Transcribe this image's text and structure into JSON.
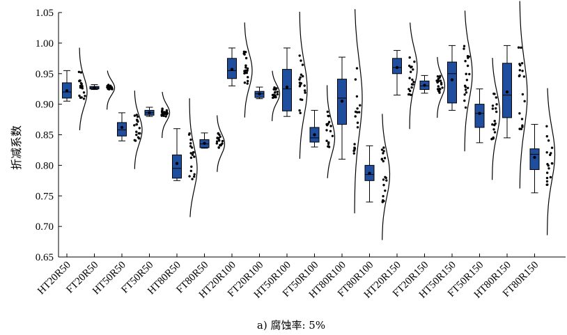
{
  "caption": "a) 腐蚀率: 5%",
  "chart_data": {
    "type": "box-raincloud",
    "ylabel": "折减系数",
    "xlabel": "",
    "ylim": [
      0.65,
      1.05
    ],
    "yticks": [
      "0.65",
      "0.70",
      "0.75",
      "0.80",
      "0.85",
      "0.90",
      "0.95",
      "1.00",
      "1.05"
    ],
    "colors": {
      "box": "#1f4e9e",
      "outline": "#000000"
    },
    "categories": [
      "HT20R50",
      "FT20R50",
      "HT50R50",
      "FT50R50",
      "HT80R50",
      "FT80R50",
      "HT20R100",
      "FT20R100",
      "HT50R100",
      "FT50R100",
      "HT80R100",
      "FT80R100",
      "HT20R150",
      "FT20R150",
      "HT50R150",
      "FT50R150",
      "HT80R150",
      "FT80R150"
    ],
    "series": [
      {
        "category": "HT20R50",
        "whisker_low": 0.905,
        "q1": 0.91,
        "median": 0.92,
        "q3": 0.935,
        "whisker_high": 0.955,
        "mean": 0.922
      },
      {
        "category": "FT20R50",
        "whisker_low": 0.924,
        "q1": 0.925,
        "median": 0.927,
        "q3": 0.929,
        "whisker_high": 0.932,
        "mean": 0.927
      },
      {
        "category": "HT50R50",
        "whisker_low": 0.84,
        "q1": 0.848,
        "median": 0.858,
        "q3": 0.87,
        "whisker_high": 0.886,
        "mean": 0.862
      },
      {
        "category": "FT50R50",
        "whisker_low": 0.88,
        "q1": 0.882,
        "median": 0.886,
        "q3": 0.89,
        "whisker_high": 0.895,
        "mean": 0.886
      },
      {
        "category": "HT80R50",
        "whisker_low": 0.775,
        "q1": 0.779,
        "median": 0.795,
        "q3": 0.817,
        "whisker_high": 0.86,
        "mean": 0.803
      },
      {
        "category": "FT80R50",
        "whisker_low": 0.828,
        "q1": 0.829,
        "median": 0.835,
        "q3": 0.842,
        "whisker_high": 0.853,
        "mean": 0.836
      },
      {
        "category": "HT20R100",
        "whisker_low": 0.93,
        "q1": 0.942,
        "median": 0.955,
        "q3": 0.975,
        "whisker_high": 0.992,
        "mean": 0.957
      },
      {
        "category": "FT20R100",
        "whisker_low": 0.909,
        "q1": 0.911,
        "median": 0.917,
        "q3": 0.921,
        "whisker_high": 0.928,
        "mean": 0.917
      },
      {
        "category": "HT50R100",
        "whisker_low": 0.88,
        "q1": 0.889,
        "median": 0.925,
        "q3": 0.957,
        "whisker_high": 0.992,
        "mean": 0.928
      },
      {
        "category": "FT50R100",
        "whisker_low": 0.83,
        "q1": 0.838,
        "median": 0.845,
        "q3": 0.862,
        "whisker_high": 0.89,
        "mean": 0.85
      },
      {
        "category": "HT80R100",
        "whisker_low": 0.81,
        "q1": 0.867,
        "median": 0.91,
        "q3": 0.941,
        "whisker_high": 0.977,
        "mean": 0.905
      },
      {
        "category": "FT80R100",
        "whisker_low": 0.74,
        "q1": 0.775,
        "median": 0.785,
        "q3": 0.8,
        "whisker_high": 0.832,
        "mean": 0.787
      },
      {
        "category": "HT20R150",
        "whisker_low": 0.915,
        "q1": 0.95,
        "median": 0.96,
        "q3": 0.975,
        "whisker_high": 0.988,
        "mean": 0.96
      },
      {
        "category": "FT20R150",
        "whisker_low": 0.918,
        "q1": 0.924,
        "median": 0.93,
        "q3": 0.938,
        "whisker_high": 0.947,
        "mean": 0.931
      },
      {
        "category": "HT50R150",
        "whisker_low": 0.89,
        "q1": 0.902,
        "median": 0.95,
        "q3": 0.969,
        "whisker_high": 0.996,
        "mean": 0.94
      },
      {
        "category": "FT50R150",
        "whisker_low": 0.837,
        "q1": 0.862,
        "median": 0.885,
        "q3": 0.9,
        "whisker_high": 0.925,
        "mean": 0.885
      },
      {
        "category": "HT80R150",
        "whisker_low": 0.845,
        "q1": 0.878,
        "median": 0.915,
        "q3": 0.967,
        "whisker_high": 0.996,
        "mean": 0.92
      },
      {
        "category": "FT80R150",
        "whisker_low": 0.755,
        "q1": 0.793,
        "median": 0.818,
        "q3": 0.827,
        "whisker_high": 0.867,
        "mean": 0.813
      }
    ]
  }
}
